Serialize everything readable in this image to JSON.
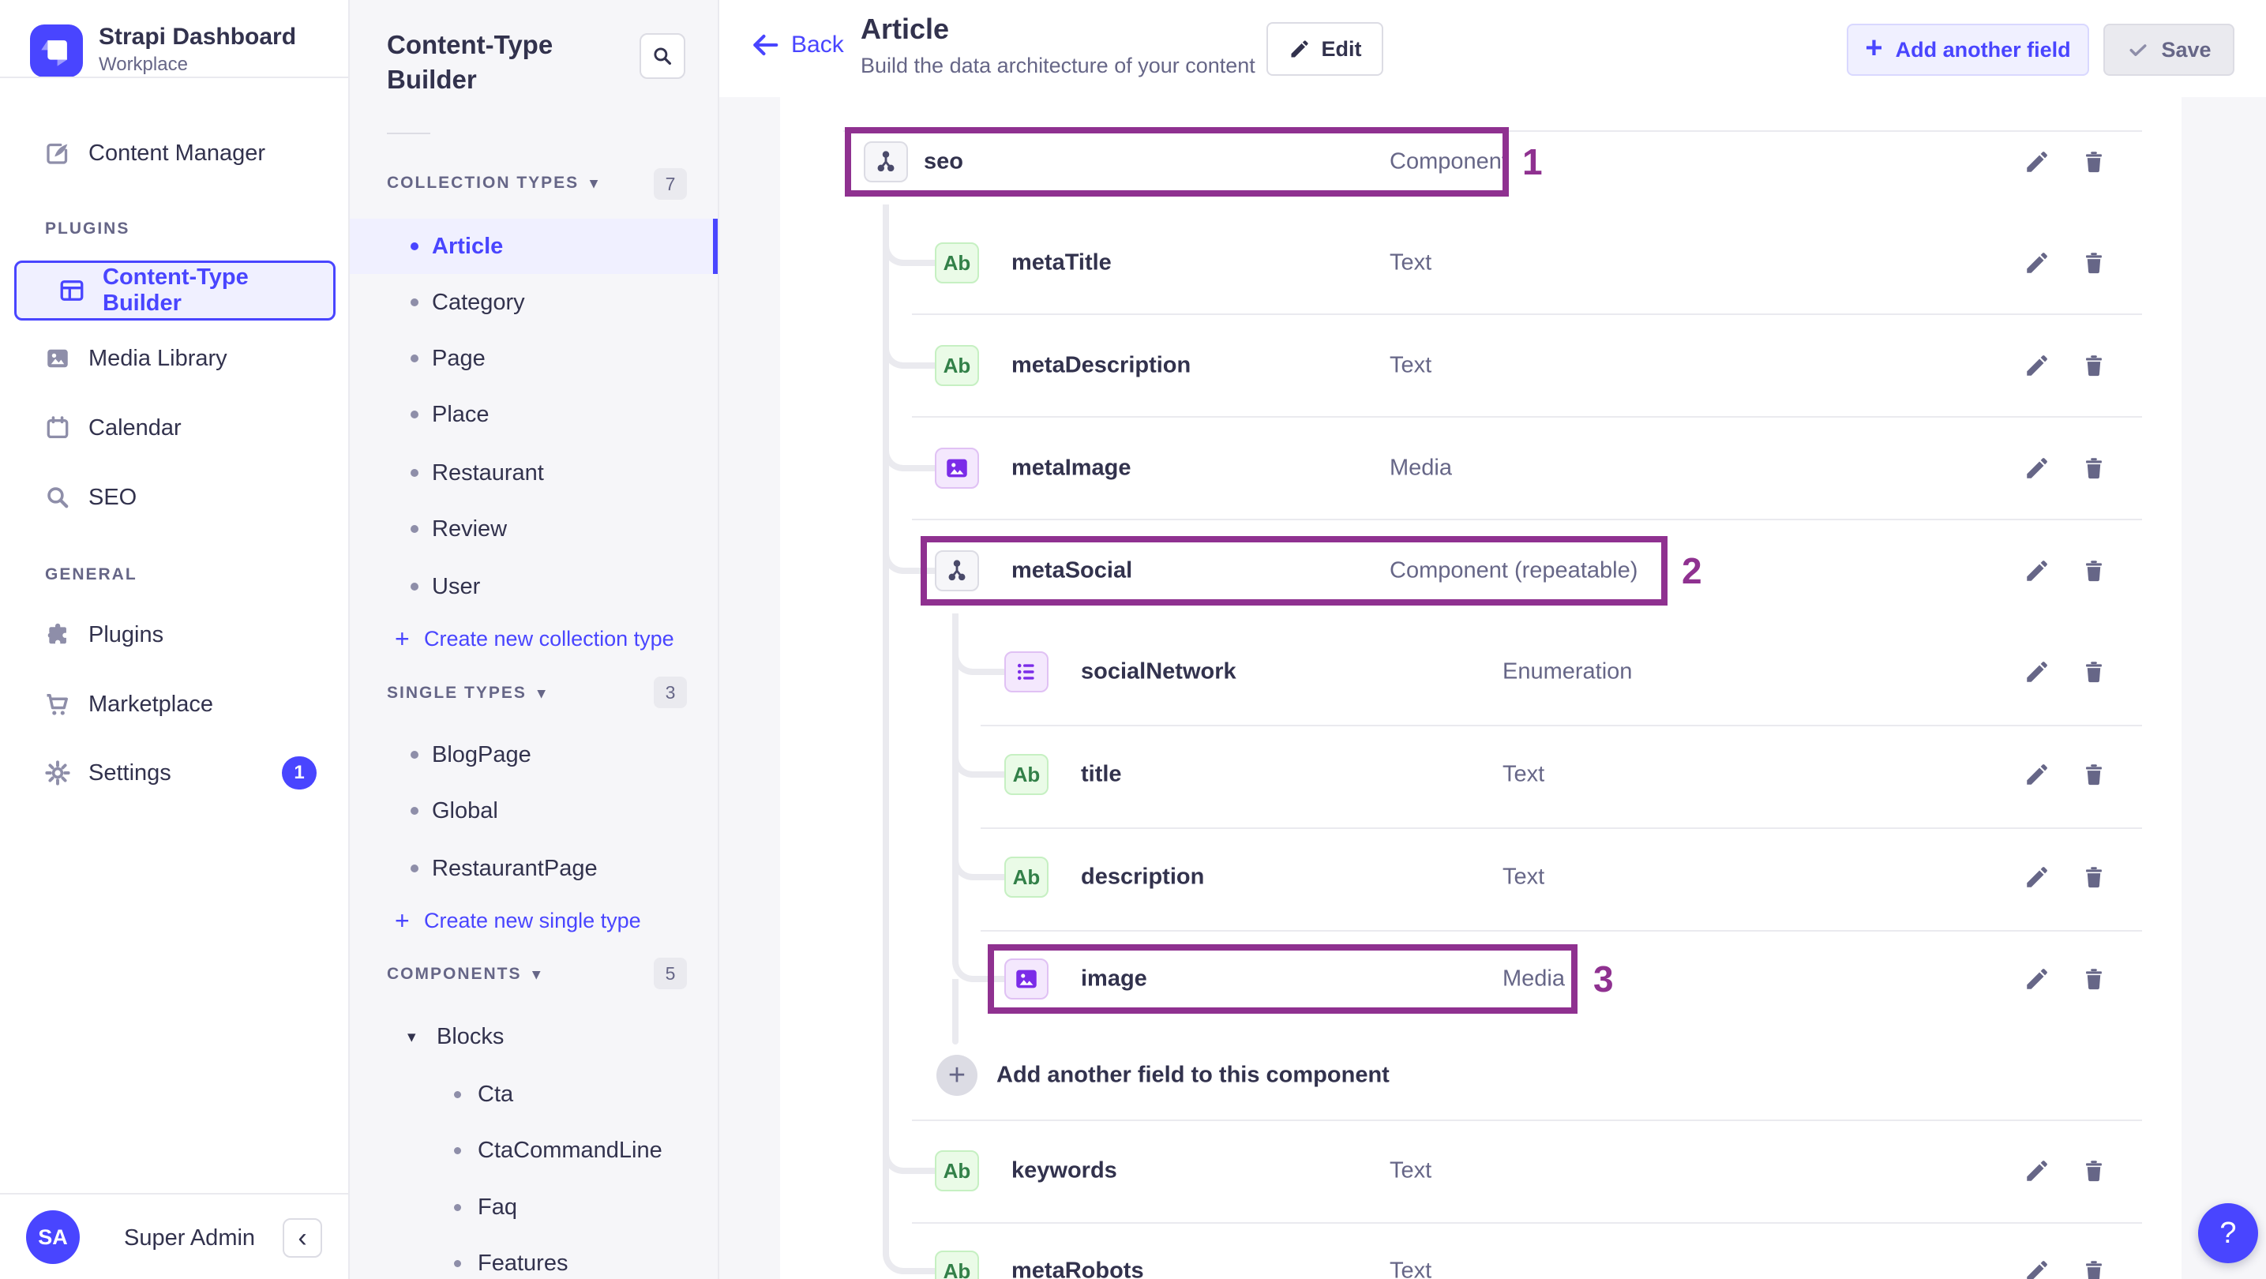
{
  "brand": {
    "name": "Strapi Dashboard",
    "workspace": "Workplace",
    "accent_color": "#4945ff"
  },
  "nav": {
    "content_manager": "Content Manager",
    "plugins_section": "PLUGINS",
    "content_type_builder": "Content-Type Builder",
    "media_library": "Media Library",
    "calendar": "Calendar",
    "seo": "SEO",
    "general_section": "GENERAL",
    "plugins": "Plugins",
    "marketplace": "Marketplace",
    "settings": "Settings",
    "settings_badge": "1"
  },
  "user": {
    "initials": "SA",
    "name": "Super Admin",
    "collapse": "‹"
  },
  "builder": {
    "title": "Content-Type Builder",
    "collection": {
      "label": "COLLECTION TYPES",
      "count": "7",
      "items": [
        {
          "label": "Article",
          "active": true
        },
        {
          "label": "Category"
        },
        {
          "label": "Page"
        },
        {
          "label": "Place"
        },
        {
          "label": "Restaurant"
        },
        {
          "label": "Review"
        },
        {
          "label": "User"
        }
      ],
      "create": "Create new collection type"
    },
    "single": {
      "label": "SINGLE TYPES",
      "count": "3",
      "items": [
        {
          "label": "BlogPage"
        },
        {
          "label": "Global"
        },
        {
          "label": "RestaurantPage"
        }
      ],
      "create": "Create new single type"
    },
    "components": {
      "label": "COMPONENTS",
      "count": "5",
      "group": "Blocks",
      "items": [
        {
          "label": "Cta"
        },
        {
          "label": "CtaCommandLine"
        },
        {
          "label": "Faq"
        },
        {
          "label": "Features"
        }
      ]
    }
  },
  "header": {
    "back": "Back",
    "title": "Article",
    "subtitle": "Build the data architecture of your content",
    "edit": "Edit",
    "add_field": "Add another field",
    "save": "Save"
  },
  "fields": {
    "annotation_color": "#8f3190",
    "rows": [
      {
        "name": "seo",
        "type": "Component",
        "icon": "component",
        "level": 0,
        "annotation": "1"
      },
      {
        "name": "metaTitle",
        "type": "Text",
        "icon": "text",
        "level": 1
      },
      {
        "name": "metaDescription",
        "type": "Text",
        "icon": "text",
        "level": 1
      },
      {
        "name": "metaImage",
        "type": "Media",
        "icon": "media",
        "level": 1
      },
      {
        "name": "metaSocial",
        "type": "Component (repeatable)",
        "icon": "component",
        "level": 1,
        "annotation": "2"
      },
      {
        "name": "socialNetwork",
        "type": "Enumeration",
        "icon": "enum",
        "level": 2
      },
      {
        "name": "title",
        "type": "Text",
        "icon": "text",
        "level": 2
      },
      {
        "name": "description",
        "type": "Text",
        "icon": "text",
        "level": 2
      },
      {
        "name": "image",
        "type": "Media",
        "icon": "media",
        "level": 2,
        "annotation": "3"
      },
      {
        "name": "keywords",
        "type": "Text",
        "icon": "text",
        "level": 1
      },
      {
        "name": "metaRobots",
        "type": "Text",
        "icon": "text",
        "level": 1
      }
    ],
    "add_component_row": "Add another field to this component"
  },
  "fab": {
    "help": "?"
  }
}
